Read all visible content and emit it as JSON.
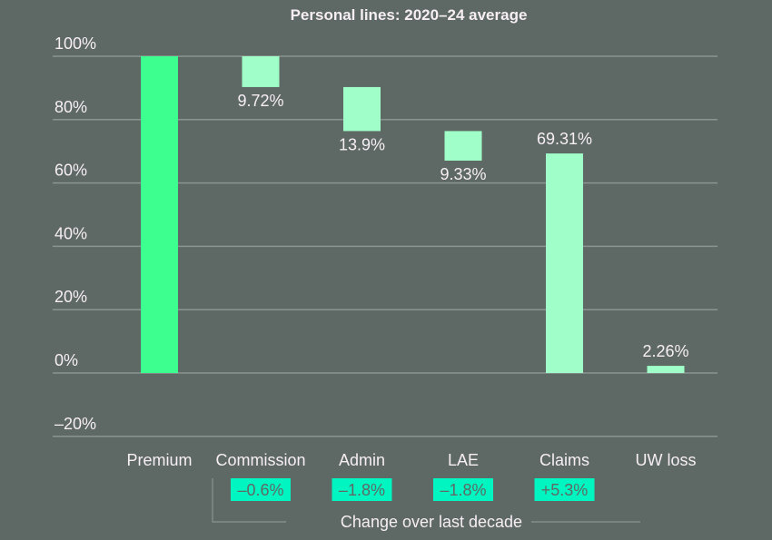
{
  "chart_data": {
    "type": "bar",
    "subtype": "waterfall",
    "title": "Personal lines: 2020–24 average",
    "categories": [
      "Premium",
      "Commission",
      "Admin",
      "LAE",
      "Claims",
      "UW loss"
    ],
    "values": [
      100,
      9.72,
      13.9,
      9.33,
      69.31,
      2.26
    ],
    "data_labels": [
      "",
      "9.72%",
      "13.9%",
      "9.33%",
      "69.31%",
      "2.26%"
    ],
    "ylim": [
      -20,
      100
    ],
    "yticks": [
      100,
      80,
      60,
      40,
      20,
      0,
      -20
    ],
    "ytick_labels": [
      "100%",
      "80%",
      "60%",
      "40%",
      "20%",
      "0%",
      "–20%"
    ],
    "grid": true,
    "change_label": "Change over last decade",
    "changes": [
      {
        "category": "Commission",
        "label": "–0.6%"
      },
      {
        "category": "Admin",
        "label": "–1.8%"
      },
      {
        "category": "LAE",
        "label": "–1.8%"
      },
      {
        "category": "Claims",
        "label": "+5.3%"
      }
    ],
    "colors": {
      "background": "#5e6966",
      "premium_bar": "#3dff8f",
      "cost_bar": "#a0ffc8",
      "change_badge": "#00f5c0",
      "badge_text": "#5e6966",
      "text": "#f6eef2",
      "grid": "#8a9490"
    }
  }
}
